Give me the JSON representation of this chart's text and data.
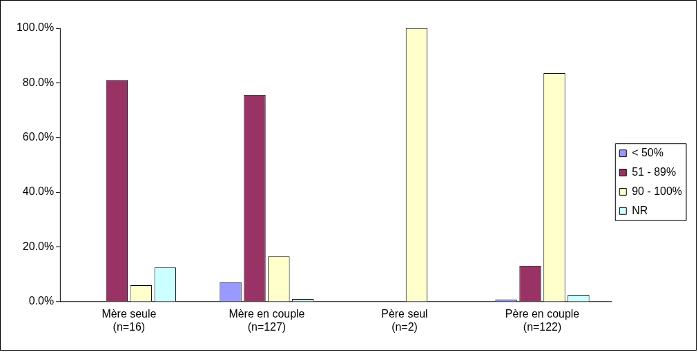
{
  "chart_data": {
    "type": "bar",
    "categories": [
      "Mère seule\n(n=16)",
      "Mère en couple\n(n=127)",
      "Père seul\n(n=2)",
      "Père en couple\n(n=122)"
    ],
    "series": [
      {
        "name": "< 50%",
        "color": "#9999ff",
        "values": [
          0,
          7.1,
          0,
          0.8
        ]
      },
      {
        "name": "51 - 89%",
        "color": "#993366",
        "values": [
          81,
          75.6,
          0,
          13.1
        ]
      },
      {
        "name": "90 - 100%",
        "color": "#ffffcc",
        "values": [
          6,
          16.5,
          100,
          83.6
        ]
      },
      {
        "name": "NR",
        "color": "#ccffff",
        "values": [
          12.5,
          1,
          0,
          2.5
        ]
      }
    ],
    "ylim": [
      0,
      100
    ],
    "yticks": [
      {
        "value": 0,
        "label": "0.0%"
      },
      {
        "value": 20,
        "label": "20.0%"
      },
      {
        "value": 40,
        "label": "40.0%"
      },
      {
        "value": 60,
        "label": "60.0%"
      },
      {
        "value": 80,
        "label": "80.0%"
      },
      {
        "value": 100,
        "label": "100.0%"
      }
    ],
    "grid": false,
    "legend": "right"
  }
}
